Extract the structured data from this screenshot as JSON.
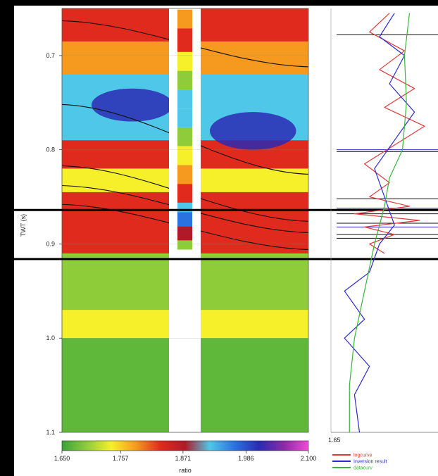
{
  "chart_data": [
    {
      "type": "heatmap",
      "ylabel": "TWT (s)",
      "ylim": [
        0.65,
        1.1
      ],
      "yticks": [
        "0.7",
        "0.8",
        "0.9",
        "1.0",
        "1.1"
      ],
      "yticks_values": [
        0.7,
        0.8,
        0.9,
        1.0,
        1.1
      ],
      "colorbar": {
        "label": "ratio",
        "range": [
          1.65,
          2.1
        ],
        "ticks": [
          "1.650",
          "1.757",
          "1.871",
          "1.986",
          "2.100"
        ],
        "ticks_values": [
          1.65,
          1.757,
          1.871,
          1.986,
          2.1
        ],
        "colors": [
          "#3aa23a",
          "#8fcc3a",
          "#f6f02a",
          "#f59a1e",
          "#e02a1e",
          "#b01a28",
          "#4fc7e8",
          "#2a72e0",
          "#2a2ab4",
          "#8a2aa8",
          "#f24ad6"
        ]
      },
      "horizons_twt_left_right": [
        [
          0.663,
          0.712
        ],
        [
          0.752,
          0.826
        ],
        [
          0.817,
          0.876
        ],
        [
          0.838,
          0.888
        ],
        [
          0.858,
          0.906
        ]
      ],
      "layer_colors": [
        {
          "from": 0.65,
          "to": 0.685,
          "color": "#e02a1e"
        },
        {
          "from": 0.685,
          "to": 0.72,
          "color": "#f59a1e"
        },
        {
          "from": 0.72,
          "to": 0.79,
          "color": "#4fc7e8"
        },
        {
          "from": 0.79,
          "to": 0.82,
          "color": "#e02a1e"
        },
        {
          "from": 0.82,
          "to": 0.845,
          "color": "#f6f02a"
        },
        {
          "from": 0.845,
          "to": 0.91,
          "color": "#e02a1e"
        },
        {
          "from": 0.91,
          "to": 0.97,
          "color": "#8fcc3a"
        },
        {
          "from": 0.97,
          "to": 1.0,
          "color": "#f6f02a"
        },
        {
          "from": 1.0,
          "to": 1.1,
          "color": "#5fb83a"
        }
      ],
      "blue_patches": [
        {
          "twt_top": 0.735,
          "twt_bottom": 0.77,
          "x_frac_left": 0.12,
          "x_frac_right": 0.45,
          "color": "#2a2ab4"
        },
        {
          "twt_top": 0.76,
          "twt_bottom": 0.8,
          "x_frac_left": 0.6,
          "x_frac_right": 0.95,
          "color": "#2a2ab4"
        }
      ],
      "well_column_samples": [
        {
          "twt": 0.655,
          "color": "#f59a1e"
        },
        {
          "twt": 0.675,
          "color": "#e02a1e"
        },
        {
          "twt": 0.7,
          "color": "#f6f02a"
        },
        {
          "twt": 0.72,
          "color": "#8fcc3a"
        },
        {
          "twt": 0.74,
          "color": "#4fc7e8"
        },
        {
          "twt": 0.76,
          "color": "#4fc7e8"
        },
        {
          "twt": 0.78,
          "color": "#8fcc3a"
        },
        {
          "twt": 0.8,
          "color": "#f6f02a"
        },
        {
          "twt": 0.82,
          "color": "#f59a1e"
        },
        {
          "twt": 0.84,
          "color": "#e02a1e"
        },
        {
          "twt": 0.86,
          "color": "#4fc7e8"
        },
        {
          "twt": 0.87,
          "color": "#2a72e0"
        },
        {
          "twt": 0.885,
          "color": "#b01a28"
        },
        {
          "twt": 0.9,
          "color": "#8fcc3a"
        }
      ],
      "highlight_window_twt": [
        0.864,
        0.916
      ]
    },
    {
      "type": "line",
      "xtick_label": "1.65",
      "ylim": [
        0.65,
        1.1
      ],
      "legend": "bottom-right",
      "series": [
        {
          "name": "logcurve",
          "color": "#e23a3a",
          "twt": [
            0.655,
            0.675,
            0.695,
            0.715,
            0.735,
            0.755,
            0.775,
            0.795,
            0.815,
            0.835,
            0.85,
            0.86,
            0.868,
            0.875,
            0.882,
            0.89,
            0.9,
            0.91
          ],
          "x_frac": [
            0.55,
            0.35,
            0.7,
            0.45,
            0.8,
            0.5,
            0.9,
            0.6,
            0.3,
            0.55,
            0.35,
            0.75,
            0.2,
            0.85,
            0.3,
            0.6,
            0.35,
            0.5
          ]
        },
        {
          "name": "Inversion result",
          "color": "#2a2ad0",
          "twt": [
            0.655,
            0.68,
            0.7,
            0.73,
            0.76,
            0.79,
            0.82,
            0.85,
            0.88,
            0.9,
            0.93,
            0.95,
            0.98,
            1.0,
            1.03,
            1.06,
            1.1
          ],
          "x_frac": [
            0.6,
            0.45,
            0.7,
            0.55,
            0.8,
            0.6,
            0.4,
            0.5,
            0.6,
            0.45,
            0.35,
            0.1,
            0.3,
            0.1,
            0.35,
            0.2,
            0.25
          ]
        },
        {
          "name": "datacurv",
          "color": "#39b539",
          "twt": [
            0.655,
            0.7,
            0.75,
            0.8,
            0.83,
            0.86,
            0.9,
            0.95,
            1.0,
            1.05,
            1.1
          ],
          "x_frac": [
            0.75,
            0.7,
            0.72,
            0.68,
            0.55,
            0.5,
            0.4,
            0.3,
            0.2,
            0.15,
            0.15
          ]
        }
      ],
      "marker_lines_twt": [
        0.678,
        0.8,
        0.802,
        0.852,
        0.862,
        0.868,
        0.878,
        0.882,
        0.89,
        0.894
      ]
    }
  ]
}
